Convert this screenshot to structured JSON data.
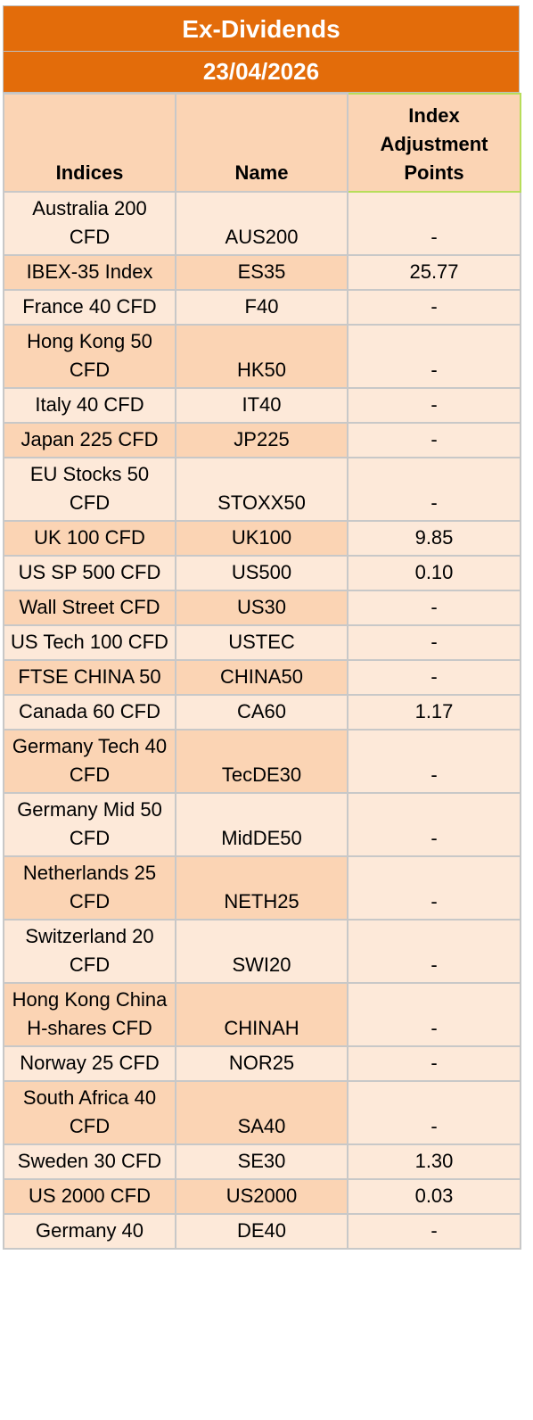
{
  "header": {
    "title": "Ex-Dividends",
    "date": "23/04/2026"
  },
  "table": {
    "columns": [
      "Indices",
      "Name",
      "Index Adjustment Points"
    ],
    "rows": [
      {
        "index": "Australia 200 CFD",
        "name": "AUS200",
        "points": "-"
      },
      {
        "index": "IBEX-35 Index",
        "name": "ES35",
        "points": "25.77"
      },
      {
        "index": "France 40 CFD",
        "name": "F40",
        "points": "-"
      },
      {
        "index": "Hong Kong 50 CFD",
        "name": "HK50",
        "points": "-"
      },
      {
        "index": "Italy 40 CFD",
        "name": "IT40",
        "points": "-"
      },
      {
        "index": "Japan 225 CFD",
        "name": "JP225",
        "points": "-"
      },
      {
        "index": "EU Stocks 50 CFD",
        "name": "STOXX50",
        "points": "-"
      },
      {
        "index": "UK 100 CFD",
        "name": "UK100",
        "points": "9.85"
      },
      {
        "index": "US SP 500 CFD",
        "name": "US500",
        "points": "0.10"
      },
      {
        "index": "Wall Street CFD",
        "name": "US30",
        "points": "-"
      },
      {
        "index": "US Tech 100 CFD",
        "name": "USTEC",
        "points": "-"
      },
      {
        "index": "FTSE CHINA 50",
        "name": "CHINA50",
        "points": "-"
      },
      {
        "index": "Canada 60 CFD",
        "name": "CA60",
        "points": "1.17"
      },
      {
        "index": "Germany Tech 40 CFD",
        "name": "TecDE30",
        "points": "-"
      },
      {
        "index": "Germany Mid 50 CFD",
        "name": "MidDE50",
        "points": "-"
      },
      {
        "index": "Netherlands 25 CFD",
        "name": "NETH25",
        "points": "-"
      },
      {
        "index": "Switzerland 20 CFD",
        "name": "SWI20",
        "points": "-"
      },
      {
        "index": "Hong Kong China H-shares CFD",
        "name": "CHINAH",
        "points": "-"
      },
      {
        "index": "Norway 25 CFD",
        "name": "NOR25",
        "points": "-"
      },
      {
        "index": "South Africa 40 CFD",
        "name": "SA40",
        "points": "-"
      },
      {
        "index": "Sweden 30 CFD",
        "name": "SE30",
        "points": "1.30"
      },
      {
        "index": "US 2000 CFD",
        "name": "US2000",
        "points": "0.03"
      },
      {
        "index": "Germany 40",
        "name": "DE40",
        "points": "-"
      }
    ]
  },
  "colors": {
    "banner": "#e36c0a",
    "header_fill": "#fbd4b4",
    "row_light": "#fde9d9",
    "row_dark": "#fbd4b4"
  }
}
